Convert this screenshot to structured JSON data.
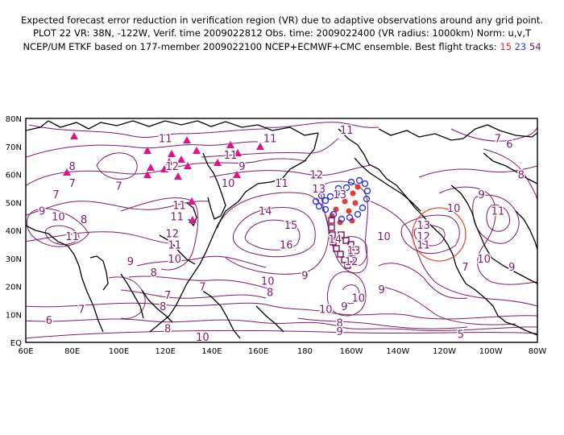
{
  "header": {
    "line1": "Expected forecast error reduction in verification region (VR) due to adaptive observations around any grid point.",
    "line2": "PLOT 22 VR: 38N, -122W, Verif. time 2009022812 Obs. time: 2009022400 (VR radius: 1000km) Norm: u,v,T",
    "line3_prefix": "NCEP/UM ETKF based on 177-member 2009022100 NCEP+ECMWF+CMC ensemble. Best flight tracks:",
    "track_a": "15",
    "track_b": "23",
    "track_c": "54"
  },
  "map": {
    "lon_labels": [
      "60E",
      "80E",
      "100E",
      "120E",
      "140E",
      "160E",
      "180",
      "160W",
      "140W",
      "120W",
      "100W",
      "80W"
    ],
    "lat_labels": [
      "EQ",
      "10N",
      "20N",
      "30N",
      "40N",
      "50N",
      "60N",
      "70N",
      "80N"
    ],
    "contour_labels": [
      {
        "t": "11",
        "lon": 120,
        "lat": 73
      },
      {
        "t": "12",
        "lon": 123,
        "lat": 63
      },
      {
        "t": "8",
        "lon": 80,
        "lat": 63
      },
      {
        "t": "7",
        "lon": 80,
        "lat": 57
      },
      {
        "t": "7",
        "lon": 73,
        "lat": 53
      },
      {
        "t": "8",
        "lon": 85,
        "lat": 44
      },
      {
        "t": "10",
        "lon": 74,
        "lat": 45
      },
      {
        "t": "9",
        "lon": 67,
        "lat": 47
      },
      {
        "t": "11",
        "lon": 80,
        "lat": 38
      },
      {
        "t": "9",
        "lon": 105,
        "lat": 29
      },
      {
        "t": "10",
        "lon": 124,
        "lat": 30
      },
      {
        "t": "8",
        "lon": 115,
        "lat": 25
      },
      {
        "t": "11",
        "lon": 125,
        "lat": 45
      },
      {
        "t": "11",
        "lon": 126,
        "lat": 49
      },
      {
        "t": "12",
        "lon": 123,
        "lat": 39
      },
      {
        "t": "11",
        "lon": 124,
        "lat": 35
      },
      {
        "t": "11",
        "lon": 148,
        "lat": 67
      },
      {
        "t": "9",
        "lon": 153,
        "lat": 63
      },
      {
        "t": "11",
        "lon": 170,
        "lat": 57
      },
      {
        "t": "10",
        "lon": 147,
        "lat": 57
      },
      {
        "t": "11",
        "lon": 165,
        "lat": 73
      },
      {
        "t": "14",
        "lon": 163,
        "lat": 47
      },
      {
        "t": "15",
        "lon": 174,
        "lat": 42
      },
      {
        "t": "16",
        "lon": 172,
        "lat": 35
      },
      {
        "t": "12",
        "lon": 185,
        "lat": 60
      },
      {
        "t": "13",
        "lon": 186,
        "lat": 55
      },
      {
        "t": "13",
        "lon": 195,
        "lat": 53
      },
      {
        "t": "11",
        "lon": 198,
        "lat": 76
      },
      {
        "t": "14",
        "lon": 193,
        "lat": 37
      },
      {
        "t": "13",
        "lon": 201,
        "lat": 33
      },
      {
        "t": "12",
        "lon": 200,
        "lat": 29
      },
      {
        "t": "10",
        "lon": 214,
        "lat": 38
      },
      {
        "t": "13",
        "lon": 231,
        "lat": 42
      },
      {
        "t": "12",
        "lon": 231,
        "lat": 38
      },
      {
        "t": "11",
        "lon": 231,
        "lat": 35
      },
      {
        "t": "10",
        "lon": 244,
        "lat": 48
      },
      {
        "t": "9",
        "lon": 256,
        "lat": 53
      },
      {
        "t": "11",
        "lon": 263,
        "lat": 47
      },
      {
        "t": "10",
        "lon": 257,
        "lat": 30
      },
      {
        "t": "9",
        "lon": 269,
        "lat": 27
      },
      {
        "t": "7",
        "lon": 263,
        "lat": 73
      },
      {
        "t": "6",
        "lon": 268,
        "lat": 71
      },
      {
        "t": "8",
        "lon": 273,
        "lat": 60
      },
      {
        "t": "7",
        "lon": 100,
        "lat": 56
      },
      {
        "t": "7",
        "lon": 136,
        "lat": 20
      },
      {
        "t": "7",
        "lon": 121,
        "lat": 17
      },
      {
        "t": "8",
        "lon": 119,
        "lat": 13
      },
      {
        "t": "6",
        "lon": 70,
        "lat": 8
      },
      {
        "t": "7",
        "lon": 84,
        "lat": 12
      },
      {
        "t": "10",
        "lon": 164,
        "lat": 22
      },
      {
        "t": "8",
        "lon": 165,
        "lat": 18
      },
      {
        "t": "9",
        "lon": 180,
        "lat": 24
      },
      {
        "t": "10",
        "lon": 189,
        "lat": 12
      },
      {
        "t": "9",
        "lon": 197,
        "lat": 13
      },
      {
        "t": "10",
        "lon": 203,
        "lat": 16
      },
      {
        "t": "9",
        "lon": 213,
        "lat": 19
      },
      {
        "t": "8",
        "lon": 195,
        "lat": 7
      },
      {
        "t": "9",
        "lon": 195,
        "lat": 4
      },
      {
        "t": "10",
        "lon": 136,
        "lat": 2
      },
      {
        "t": "5",
        "lon": 247,
        "lat": 3
      },
      {
        "t": "7",
        "lon": 249,
        "lat": 27
      },
      {
        "t": "8",
        "lon": 121,
        "lat": 5
      }
    ],
    "vr_circle": {
      "lon": -122,
      "lat": 38,
      "radius_km": 1000
    },
    "colors": {
      "contour": "#7d1d6a",
      "land": "#000000",
      "triangle": "#e0138c",
      "vr": "#e54f3f",
      "track_red": "#e33a3a",
      "track_blue": "#2e3ad8",
      "track_purple": "#7b1161"
    }
  }
}
